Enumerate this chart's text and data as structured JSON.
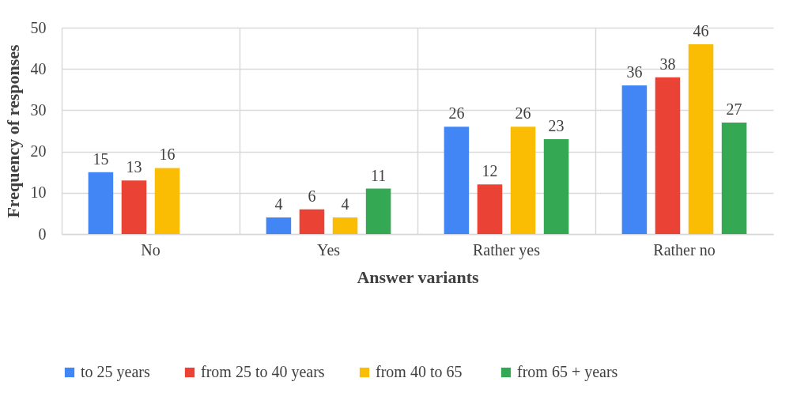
{
  "chart_data": {
    "type": "bar",
    "xlabel": "Answer variants",
    "ylabel": "Frequency  of responses",
    "categories": [
      "No",
      "Yes",
      "Rather yes",
      "Rather no"
    ],
    "series": [
      {
        "name": "to 25 years",
        "color": "#4285f4",
        "values": [
          15,
          4,
          26,
          36
        ]
      },
      {
        "name": "from 25 to 40 years",
        "color": "#ea4335",
        "values": [
          13,
          6,
          12,
          38
        ]
      },
      {
        "name": "from  40 to 65",
        "color": "#fbbc04",
        "values": [
          16,
          4,
          26,
          46
        ]
      },
      {
        "name": "from 65 + years",
        "color": "#34a853",
        "values": [
          null,
          11,
          23,
          27
        ]
      }
    ],
    "ylim": [
      0,
      50
    ],
    "yticks": [
      0,
      10,
      20,
      30,
      40,
      50
    ],
    "grid": true,
    "legend": "bottom",
    "data_labels": true
  }
}
